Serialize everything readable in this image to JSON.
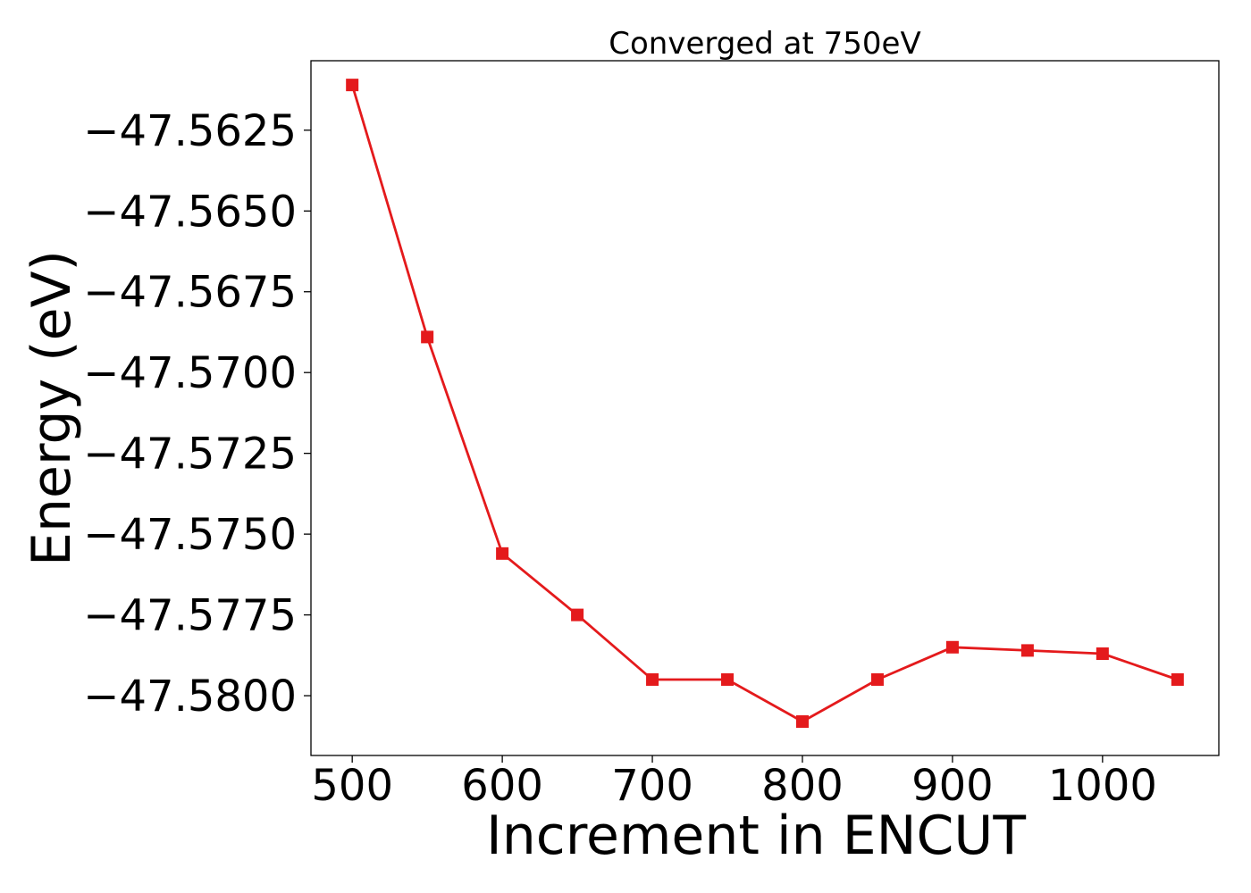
{
  "chart_data": {
    "type": "line",
    "title": "Converged at 750eV",
    "xlabel": "Increment in ENCUT",
    "ylabel": "Energy (eV)",
    "xlim": [
      472.5,
      1077.5
    ],
    "ylim": [
      -47.58185,
      -47.56035
    ],
    "x_ticks": [
      500,
      600,
      700,
      800,
      900,
      1000
    ],
    "x_tick_labels": [
      "500",
      "600",
      "700",
      "800",
      "900",
      "1000"
    ],
    "y_ticks": [
      -47.5625,
      -47.565,
      -47.5675,
      -47.57,
      -47.5725,
      -47.575,
      -47.5775,
      -47.58
    ],
    "y_tick_labels": [
      "−47.5625",
      "−47.5650",
      "−47.5675",
      "−47.5700",
      "−47.5725",
      "−47.5750",
      "−47.5775",
      "−47.5800"
    ],
    "grid": false,
    "legend": "none",
    "series": [
      {
        "color": "#e41a1c",
        "marker": "square",
        "x": [
          500,
          550,
          600,
          650,
          700,
          750,
          800,
          850,
          900,
          950,
          1000,
          1050
        ],
        "y": [
          -47.5611,
          -47.5689,
          -47.5756,
          -47.5775,
          -47.5795,
          -47.5795,
          -47.5808,
          -47.5795,
          -47.5785,
          -47.5786,
          -47.5787,
          -47.5795
        ]
      }
    ]
  }
}
